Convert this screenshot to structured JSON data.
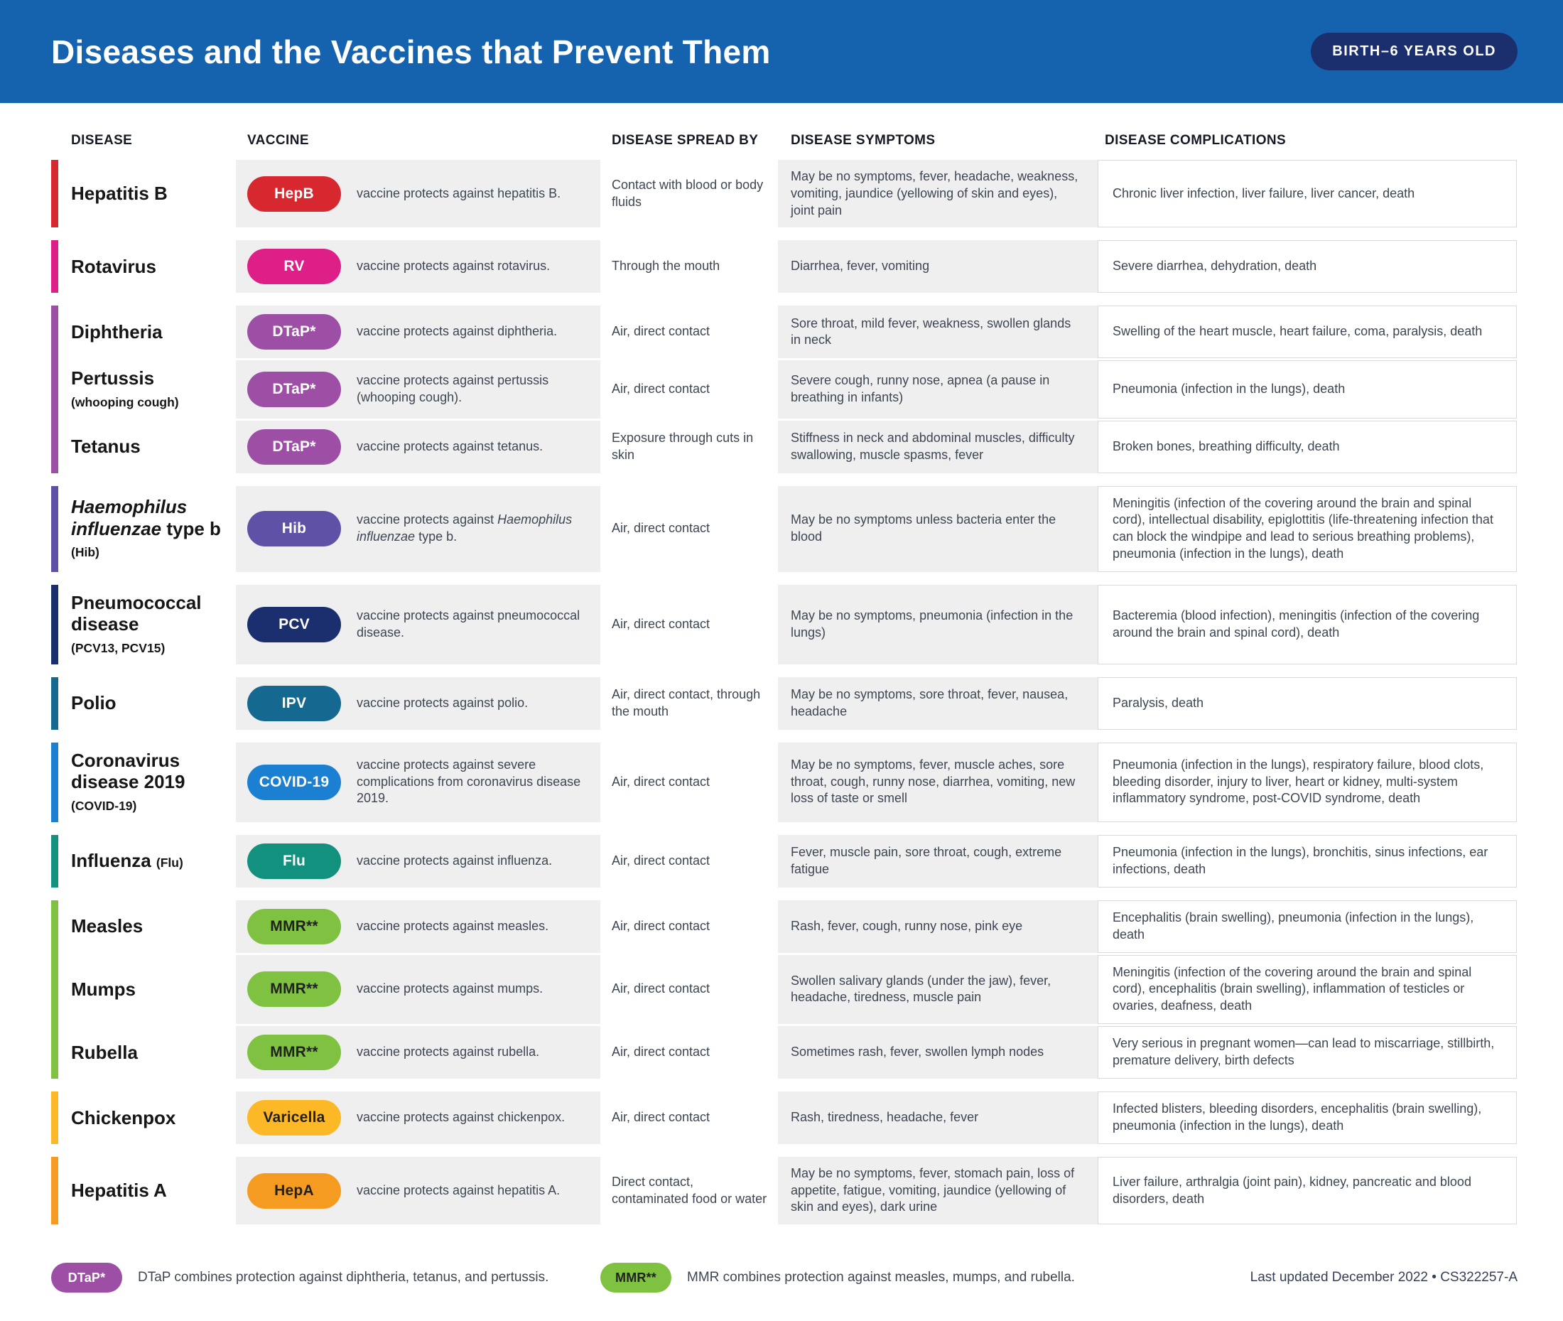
{
  "header": {
    "title": "Diseases and the Vaccines that Prevent Them",
    "badge": "BIRTH–6 YEARS OLD",
    "header_bg": "#1563ae",
    "badge_bg": "#1b2f6e"
  },
  "columns": {
    "disease": "DISEASE",
    "vaccine": "VACCINE",
    "spread": "DISEASE SPREAD BY",
    "symptoms": "DISEASE SYMPTOMS",
    "complications": "DISEASE COMPLICATIONS"
  },
  "groups": [
    {
      "color": "#d7282f",
      "rows": [
        {
          "key": "hepatitis-b",
          "name": [
            {
              "t": "Hepatitis B"
            }
          ],
          "pill": "HepB",
          "pill_color": "#d7282f",
          "pill_text": "#ffffff",
          "desc": [
            {
              "t": "vaccine protects against hepatitis B."
            }
          ],
          "spread": "Contact with blood or body fluids",
          "symptoms": "May be no symptoms, fever, headache, weakness, vomiting, jaundice (yellowing of skin and eyes), joint pain",
          "complications": "Chronic liver infection, liver failure, liver cancer, death"
        }
      ]
    },
    {
      "color": "#dd1f87",
      "rows": [
        {
          "key": "rotavirus",
          "name": [
            {
              "t": "Rotavirus"
            }
          ],
          "pill": "RV",
          "pill_color": "#dd1f87",
          "pill_text": "#ffffff",
          "desc": [
            {
              "t": "vaccine protects against rotavirus."
            }
          ],
          "spread": "Through the mouth",
          "symptoms": "Diarrhea, fever, vomiting",
          "complications": "Severe diarrhea, dehydration, death"
        }
      ]
    },
    {
      "color": "#9c4fa5",
      "rows": [
        {
          "key": "diphtheria",
          "name": [
            {
              "t": "Diphtheria"
            }
          ],
          "pill": "DTaP*",
          "pill_color": "#9c4fa5",
          "pill_text": "#ffffff",
          "desc": [
            {
              "t": "vaccine protects against diphtheria."
            }
          ],
          "spread": "Air, direct contact",
          "symptoms": "Sore throat, mild fever, weakness, swollen glands in neck",
          "complications": "Swelling of the heart muscle, heart failure, coma, paralysis, death"
        },
        {
          "key": "pertussis",
          "name": [
            {
              "t": "Pertussis"
            },
            {
              "t": "(whooping cough)",
              "s": true,
              "br": true
            }
          ],
          "pill": "DTaP*",
          "pill_color": "#9c4fa5",
          "pill_text": "#ffffff",
          "desc": [
            {
              "t": "vaccine protects against pertussis (whooping cough)."
            }
          ],
          "spread": "Air, direct contact",
          "symptoms": "Severe cough, runny nose, apnea (a pause in breathing in infants)",
          "complications": "Pneumonia (infection in the lungs), death"
        },
        {
          "key": "tetanus",
          "name": [
            {
              "t": "Tetanus"
            }
          ],
          "pill": "DTaP*",
          "pill_color": "#9c4fa5",
          "pill_text": "#ffffff",
          "desc": [
            {
              "t": "vaccine protects against tetanus."
            }
          ],
          "spread": "Exposure through cuts in skin",
          "symptoms": "Stiffness in neck and abdominal muscles, difficulty swallowing, muscle spasms, fever",
          "complications": "Broken bones, breathing difficulty, death"
        }
      ]
    },
    {
      "color": "#5f51a5",
      "rows": [
        {
          "key": "hib",
          "name": [
            {
              "t": "Haemophilus influenzae",
              "i": true
            },
            {
              "t": " type b "
            },
            {
              "t": "(Hib)",
              "s": true
            }
          ],
          "pill": "Hib",
          "pill_color": "#5f51a5",
          "pill_text": "#ffffff",
          "desc": [
            {
              "t": "vaccine protects against "
            },
            {
              "t": "Haemophilus influenzae",
              "i": true
            },
            {
              "t": " type b."
            }
          ],
          "spread": "Air, direct contact",
          "symptoms": "May be no symptoms unless bacteria enter the blood",
          "complications": "Meningitis (infection of the covering around the brain and spinal cord), intellectual disability, epiglottitis (life-threatening infection that can block the windpipe and lead to serious breathing problems), pneumonia (infection in the lungs), death"
        }
      ]
    },
    {
      "color": "#1b2f6e",
      "rows": [
        {
          "key": "pneumococcal",
          "name": [
            {
              "t": "Pneumococcal disease"
            },
            {
              "t": "(PCV13, PCV15)",
              "s": true,
              "br": true
            }
          ],
          "pill": "PCV",
          "pill_color": "#1b2f6e",
          "pill_text": "#ffffff",
          "desc": [
            {
              "t": "vaccine protects against pneumococcal disease."
            }
          ],
          "spread": "Air, direct contact",
          "symptoms": "May be no symptoms, pneumonia (infection in the lungs)",
          "complications": "Bacteremia (blood infection), meningitis (infection of the covering around the brain and spinal cord), death"
        }
      ]
    },
    {
      "color": "#15688f",
      "rows": [
        {
          "key": "polio",
          "name": [
            {
              "t": "Polio"
            }
          ],
          "pill": "IPV",
          "pill_color": "#15688f",
          "pill_text": "#ffffff",
          "desc": [
            {
              "t": "vaccine protects against polio."
            }
          ],
          "spread": "Air, direct contact, through the mouth",
          "symptoms": "May be no symptoms, sore throat, fever, nausea, headache",
          "complications": "Paralysis, death"
        }
      ]
    },
    {
      "color": "#1c80d2",
      "rows": [
        {
          "key": "covid-19",
          "name": [
            {
              "t": "Coronavirus disease 2019"
            },
            {
              "t": "(COVID-19)",
              "s": true,
              "br": true
            }
          ],
          "pill": "COVID-19",
          "pill_color": "#1c80d2",
          "pill_text": "#ffffff",
          "desc": [
            {
              "t": "vaccine protects against severe complications from coronavirus disease 2019."
            }
          ],
          "spread": "Air, direct contact",
          "symptoms": "May be no symptoms, fever, muscle aches, sore throat, cough, runny nose, diarrhea, vomiting, new loss of taste or smell",
          "complications": "Pneumonia (infection in the lungs), respiratory failure, blood clots, bleeding disorder, injury to liver, heart or kidney, multi-system inflammatory syndrome, post-COVID syndrome, death"
        }
      ]
    },
    {
      "color": "#11917e",
      "rows": [
        {
          "key": "influenza",
          "name": [
            {
              "t": "Influenza "
            },
            {
              "t": "(Flu)",
              "s": true
            }
          ],
          "pill": "Flu",
          "pill_color": "#11917e",
          "pill_text": "#ffffff",
          "desc": [
            {
              "t": "vaccine protects against influenza."
            }
          ],
          "spread": "Air, direct contact",
          "symptoms": "Fever, muscle pain, sore throat, cough, extreme fatigue",
          "complications": "Pneumonia (infection in the lungs), bronchitis, sinus infections, ear infections, death"
        }
      ]
    },
    {
      "color": "#7fc241",
      "rows": [
        {
          "key": "measles",
          "name": [
            {
              "t": "Measles"
            }
          ],
          "pill": "MMR**",
          "pill_color": "#7fc241",
          "pill_text": "#212121",
          "desc": [
            {
              "t": "vaccine protects against measles."
            }
          ],
          "spread": "Air, direct contact",
          "symptoms": "Rash, fever, cough, runny nose, pink eye",
          "complications": "Encephalitis (brain swelling), pneumonia (infection in the lungs), death"
        },
        {
          "key": "mumps",
          "name": [
            {
              "t": "Mumps"
            }
          ],
          "pill": "MMR**",
          "pill_color": "#7fc241",
          "pill_text": "#212121",
          "desc": [
            {
              "t": "vaccine protects against mumps."
            }
          ],
          "spread": "Air, direct contact",
          "symptoms": "Swollen salivary glands (under the jaw), fever, headache, tiredness, muscle pain",
          "complications": "Meningitis (infection of the covering around the brain and spinal cord), encephalitis (brain swelling), inflammation of testicles or ovaries, deafness, death"
        },
        {
          "key": "rubella",
          "name": [
            {
              "t": "Rubella"
            }
          ],
          "pill": "MMR**",
          "pill_color": "#7fc241",
          "pill_text": "#212121",
          "desc": [
            {
              "t": "vaccine protects against rubella."
            }
          ],
          "spread": "Air, direct contact",
          "symptoms": "Sometimes rash, fever, swollen lymph nodes",
          "complications": "Very serious in pregnant women—can lead to miscarriage, stillbirth, premature delivery, birth defects"
        }
      ]
    },
    {
      "color": "#fcb826",
      "rows": [
        {
          "key": "chickenpox",
          "name": [
            {
              "t": "Chickenpox"
            }
          ],
          "pill": "Varicella",
          "pill_color": "#fcb826",
          "pill_text": "#212121",
          "desc": [
            {
              "t": "vaccine protects against chickenpox."
            }
          ],
          "spread": "Air, direct contact",
          "symptoms": "Rash, tiredness, headache, fever",
          "complications": "Infected blisters, bleeding disorders, encephalitis (brain swelling), pneumonia (infection in the lungs), death"
        }
      ]
    },
    {
      "color": "#f59b22",
      "rows": [
        {
          "key": "hepatitis-a",
          "name": [
            {
              "t": "Hepatitis A"
            }
          ],
          "pill": "HepA",
          "pill_color": "#f59b22",
          "pill_text": "#212121",
          "desc": [
            {
              "t": "vaccine protects against hepatitis A."
            }
          ],
          "spread": "Direct contact, contaminated food or water",
          "symptoms": "May be no symptoms, fever, stomach pain, loss of appetite, fatigue, vomiting, jaundice (yellowing of skin and eyes), dark urine",
          "complications": "Liver failure, arthralgia (joint pain), kidney, pancreatic and blood disorders, death"
        }
      ]
    }
  ],
  "footnotes": [
    {
      "pill": "DTaP*",
      "pill_color": "#9c4fa5",
      "pill_text": "#ffffff",
      "text": "DTaP combines protection against diphtheria, tetanus, and pertussis."
    },
    {
      "pill": "MMR**",
      "pill_color": "#7fc241",
      "pill_text": "#212121",
      "text": "MMR combines protection against measles, mumps, and rubella."
    }
  ],
  "footer": {
    "updated": "Last updated December 2022 • CS322257-A"
  }
}
